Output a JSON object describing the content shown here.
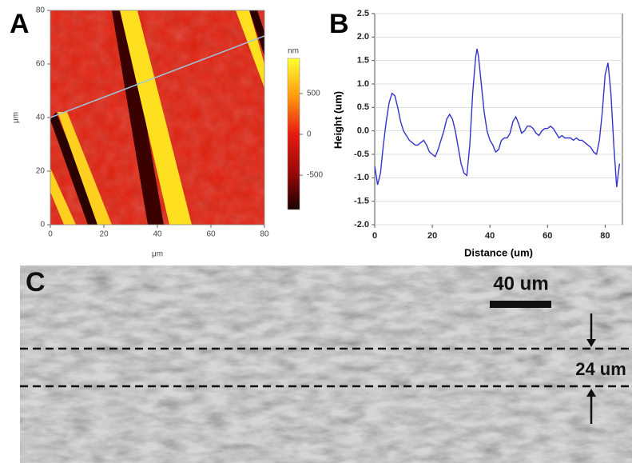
{
  "chart_data": [
    {
      "type": "image",
      "panel_label": "A",
      "xlabel": "μm",
      "ylabel": "μm",
      "xlim": [
        0,
        80
      ],
      "ylim": [
        0,
        80
      ],
      "xticks": [
        0,
        20,
        40,
        60,
        80
      ],
      "yticks": [
        0,
        20,
        40,
        60,
        80
      ],
      "colorbar_label": "nm",
      "colorbar_lim": [
        -920,
        930
      ],
      "colorbar_ticks": [
        500,
        0,
        -500
      ]
    },
    {
      "type": "line",
      "panel_label": "B",
      "xlabel": "Distance (um)",
      "ylabel": "Height (um)",
      "color": "#3333cc",
      "grid": true,
      "xlim": [
        0,
        86
      ],
      "ylim": [
        -2,
        2.5
      ],
      "xticks": [
        0,
        20,
        40,
        60,
        80
      ],
      "yticks": [
        {
          "value": -2,
          "label": "-2.0"
        },
        -1.5,
        {
          "value": -1,
          "label": "-1.0"
        },
        -0.5,
        {
          "value": 0,
          "label": "0.0"
        },
        0.5,
        {
          "value": 1,
          "label": "1.0"
        },
        1.5,
        {
          "value": 2,
          "label": "2.0"
        },
        2.5
      ],
      "x": [
        0,
        1,
        2,
        3,
        4,
        5,
        6,
        7,
        8,
        9,
        10,
        11,
        12,
        13,
        14,
        15,
        16,
        17,
        18,
        19,
        20,
        21,
        22,
        23,
        24,
        25,
        26,
        27,
        28,
        29,
        30,
        31,
        32,
        33,
        34,
        35,
        35.5,
        36,
        37,
        38,
        39,
        40,
        41,
        42,
        43,
        44,
        45,
        46,
        47,
        48,
        49,
        50,
        51,
        52,
        53,
        54,
        55,
        56,
        57,
        58,
        59,
        60,
        61,
        62,
        63,
        64,
        65,
        66,
        67,
        68,
        69,
        70,
        71,
        72,
        73,
        74,
        75,
        76,
        77,
        78,
        79,
        80,
        81,
        82,
        83,
        84,
        85
      ],
      "values": [
        -0.75,
        -1.15,
        -0.9,
        -0.3,
        0.2,
        0.6,
        0.8,
        0.75,
        0.5,
        0.2,
        0.0,
        -0.1,
        -0.2,
        -0.25,
        -0.3,
        -0.3,
        -0.25,
        -0.2,
        -0.3,
        -0.45,
        -0.5,
        -0.55,
        -0.4,
        -0.2,
        0.0,
        0.25,
        0.35,
        0.25,
        0.0,
        -0.35,
        -0.7,
        -0.9,
        -0.95,
        -0.3,
        0.8,
        1.55,
        1.75,
        1.6,
        1.0,
        0.4,
        0.0,
        -0.2,
        -0.3,
        -0.45,
        -0.4,
        -0.2,
        -0.15,
        -0.15,
        -0.05,
        0.2,
        0.3,
        0.15,
        -0.05,
        0.0,
        0.1,
        0.1,
        0.05,
        -0.05,
        -0.1,
        0.0,
        0.05,
        0.05,
        0.1,
        0.05,
        -0.05,
        -0.15,
        -0.1,
        -0.15,
        -0.15,
        -0.15,
        -0.2,
        -0.15,
        -0.2,
        -0.2,
        -0.25,
        -0.3,
        -0.35,
        -0.45,
        -0.5,
        -0.2,
        0.4,
        1.2,
        1.45,
        0.8,
        -0.3,
        -1.2,
        -0.7
      ]
    }
  ],
  "sem_image": {
    "panel_label": "C",
    "scale_bar": "40 um",
    "gap_label": "24 um"
  }
}
